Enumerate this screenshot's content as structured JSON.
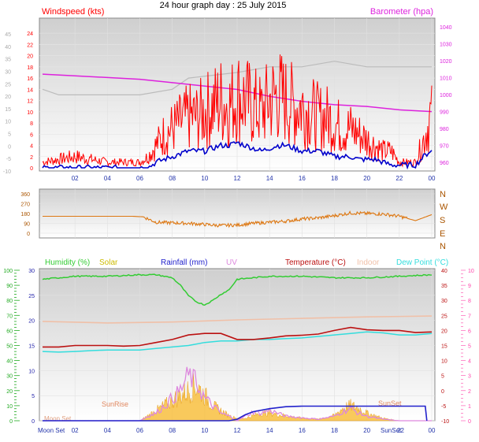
{
  "title": "24 hour graph day : 25 July 2015",
  "colors": {
    "wind": "#ff0000",
    "gust": "#0000cc",
    "baro": "#dd22dd",
    "gray": "#bbbbbb",
    "dir": "#dd7711",
    "humidity": "#33cc33",
    "solar": "#ccbb00",
    "rainfall": "#2222cc",
    "uv": "#dd88dd",
    "temperature": "#bb1111",
    "indoor": "#f0c0a8",
    "dewpoint": "#33dddd",
    "solarfill": "#f8c040",
    "green": "#22aa22",
    "pink": "#ff44aa"
  },
  "chart_data": [
    {
      "type": "line",
      "title": "24 hour graph day : 25 July 2015",
      "left_label": "Windspeed (kts)",
      "right_label": "Barometer (hpa)",
      "x_ticks": [
        "02",
        "04",
        "06",
        "08",
        "10",
        "12",
        "14",
        "16",
        "18",
        "20",
        "22",
        "00"
      ],
      "y_left_outer": [
        45,
        40,
        35,
        30,
        25,
        20,
        15,
        10,
        5,
        0,
        -5,
        -10
      ],
      "y_left_inner": [
        24,
        22,
        20,
        18,
        16,
        14,
        12,
        10,
        8,
        6,
        4,
        2,
        0
      ],
      "y_right": [
        1040,
        1030,
        1020,
        1010,
        1000,
        990,
        980,
        970,
        960
      ],
      "ylim_wind": [
        0,
        25
      ],
      "ylim_baro": [
        955,
        1045
      ],
      "series": [
        {
          "name": "Windspeed (kts)",
          "x": [
            0,
            2,
            4,
            6,
            6.5,
            7,
            7.5,
            8,
            8.5,
            9,
            9.5,
            10,
            10.5,
            11,
            11.5,
            12,
            12.5,
            13,
            13.5,
            14,
            14.5,
            15,
            15.5,
            16,
            16.5,
            17,
            17.5,
            18,
            18.5,
            19,
            19.5,
            20,
            20.5,
            21,
            21.5,
            22,
            22.5,
            23,
            23.5,
            23.9
          ],
          "values": [
            1,
            2,
            1,
            1,
            2,
            4,
            6,
            7,
            8,
            9,
            9,
            10,
            11,
            12,
            11,
            13,
            12,
            11,
            10,
            12,
            13,
            12,
            11,
            11,
            10,
            9,
            9,
            8,
            7,
            7,
            6,
            5,
            4,
            3,
            3,
            1,
            1,
            1,
            5,
            9
          ]
        },
        {
          "name": "Gust",
          "x": [
            0,
            2,
            4,
            6,
            6.5,
            7,
            7.5,
            8,
            8.5,
            9,
            9.5,
            10,
            10.5,
            11,
            11.5,
            12,
            12.5,
            13,
            13.5,
            14,
            14.5,
            15,
            15.5,
            16,
            16.5,
            17,
            17.5,
            18,
            18.5,
            19,
            19.5,
            20,
            20.5,
            21,
            21.5,
            22,
            22.5,
            23,
            23.5,
            23.9
          ],
          "values": [
            0,
            0,
            0,
            0,
            0,
            1,
            1.5,
            2,
            2.5,
            3,
            3,
            3,
            3.5,
            4,
            4,
            4.5,
            4,
            3.5,
            3,
            3.5,
            4,
            4,
            3.5,
            3,
            3,
            3,
            2.5,
            2,
            2,
            2,
            1.5,
            1.5,
            1.5,
            1,
            0.5,
            0.5,
            0.5,
            0.5,
            2,
            3
          ]
        },
        {
          "name": "Barometer (hpa)",
          "x": [
            0,
            2,
            4,
            6,
            8,
            10,
            12,
            14,
            16,
            18,
            20,
            22,
            24
          ],
          "values": [
            1012,
            1011,
            1010,
            1009,
            1007,
            1005,
            1003,
            999,
            996,
            994,
            993,
            991,
            990
          ]
        },
        {
          "name": "Gray",
          "x": [
            0,
            1,
            3,
            6,
            8,
            9,
            12,
            14,
            16,
            18,
            20,
            22,
            24
          ],
          "values": [
            14,
            13,
            13,
            13,
            14,
            16,
            17,
            18,
            18,
            19,
            18,
            18,
            18
          ]
        }
      ]
    },
    {
      "type": "line",
      "y_left": [
        360,
        270,
        180,
        90,
        0
      ],
      "y_right": [
        "N",
        "W",
        "S",
        "E",
        "N"
      ],
      "ylim": [
        0,
        360
      ],
      "series": [
        {
          "name": "Wind Direction",
          "x": [
            0,
            2,
            4,
            5.5,
            6.2,
            7,
            8,
            9,
            10,
            11,
            12,
            13,
            14,
            15,
            16,
            17,
            18,
            19,
            20,
            21,
            22,
            23,
            24
          ],
          "values": [
            155,
            155,
            155,
            155,
            150,
            100,
            95,
            90,
            80,
            70,
            75,
            90,
            100,
            110,
            130,
            140,
            160,
            185,
            180,
            175,
            155,
            115,
            170
          ]
        }
      ]
    },
    {
      "type": "line",
      "legend": [
        "Humidity (%)",
        "Solar",
        "Rainfall (mm)",
        "UV",
        "Temperature (°C)",
        "Indoor",
        "Dew Point (°C)"
      ],
      "y_outer_green": [
        100,
        90,
        80,
        70,
        60,
        50,
        40,
        30,
        20,
        10,
        0
      ],
      "y_inner_left": [
        30,
        25,
        20,
        15,
        10,
        5,
        0
      ],
      "y_right_temp": [
        40,
        35,
        30,
        25,
        20,
        15,
        10,
        5,
        0,
        -5,
        -10
      ],
      "y_far_right_uv": [
        10,
        9,
        8,
        7,
        6,
        5,
        4,
        3,
        2,
        1,
        0
      ],
      "x_ticks": [
        "02",
        "04",
        "06",
        "08",
        "10",
        "12",
        "14",
        "16",
        "18",
        "20",
        "22",
        "00"
      ],
      "x_labels": [
        "Moon Set",
        "SunSet",
        "22"
      ],
      "annotations": [
        "SunRise",
        "SunSet",
        "Moon Set"
      ],
      "series": [
        {
          "name": "Humidity (%)",
          "x": [
            0,
            2,
            4,
            6,
            7,
            8,
            8.5,
            9,
            9.5,
            10,
            10.5,
            11,
            11.5,
            12,
            14,
            16,
            18,
            20,
            22,
            24
          ],
          "values": [
            94,
            96,
            96,
            97,
            97,
            95,
            90,
            83,
            79,
            77,
            80,
            84,
            87,
            94,
            96,
            96,
            95,
            95,
            96,
            97
          ]
        },
        {
          "name": "Rainfall (mm)",
          "x": [
            0,
            11.5,
            12,
            12.5,
            13,
            14,
            15,
            16,
            18,
            20,
            22,
            23.6,
            23.7
          ],
          "values": [
            0,
            0,
            0.3,
            1.2,
            1.8,
            2.4,
            2.8,
            2.9,
            2.9,
            2.9,
            2.9,
            2.9,
            0
          ]
        },
        {
          "name": "Temperature (°C)",
          "x": [
            0,
            1,
            2,
            3,
            4,
            5,
            6,
            7,
            8,
            9,
            10,
            11,
            12,
            13,
            14,
            15,
            16,
            17,
            18,
            19,
            20,
            21,
            22,
            23,
            24
          ],
          "values": [
            14.5,
            14.5,
            15,
            15,
            15,
            14.8,
            15,
            16,
            17,
            18.5,
            19,
            19,
            17,
            17,
            17.5,
            18.2,
            18.4,
            18.8,
            20,
            21,
            20.2,
            20,
            20,
            19.3,
            19.5
          ]
        },
        {
          "name": "Indoor",
          "x": [
            0,
            4,
            8,
            12,
            16,
            20,
            24
          ],
          "values": [
            23,
            22.5,
            22.8,
            23.5,
            24,
            24.5,
            24.8
          ]
        },
        {
          "name": "Dew Point (°C)",
          "x": [
            0,
            1,
            2,
            3,
            4,
            5,
            6,
            7,
            8,
            9,
            10,
            11,
            12,
            13,
            14,
            15,
            16,
            17,
            18,
            19,
            20,
            21,
            22,
            23,
            24
          ],
          "values": [
            13,
            12.8,
            13,
            13.3,
            13.5,
            13.5,
            13.5,
            14,
            14.5,
            15,
            16,
            16.5,
            16.5,
            17,
            17,
            17.3,
            17.5,
            18,
            18.5,
            19,
            19.5,
            19.2,
            18.5,
            18.5,
            19
          ]
        },
        {
          "name": "Solar",
          "x": [
            0,
            6,
            6.5,
            7,
            7.5,
            8,
            8.5,
            9,
            9.5,
            10,
            10.5,
            11,
            11.5,
            12,
            12.5,
            13,
            13.5,
            14,
            15,
            16,
            17,
            18,
            18.5,
            19,
            19.5,
            20,
            21,
            22,
            23,
            24
          ],
          "values": [
            0,
            0,
            1,
            2,
            3,
            4,
            5,
            6,
            7,
            5,
            3,
            2,
            1,
            0.5,
            0.5,
            1,
            1.5,
            1.5,
            1,
            0.5,
            0.3,
            1,
            2.5,
            3,
            2.5,
            1.5,
            0.5,
            0,
            0,
            0
          ]
        },
        {
          "name": "UV",
          "x": [
            0,
            6,
            6.5,
            7,
            7.5,
            8,
            8.5,
            9,
            9.5,
            10,
            10.5,
            11,
            11.5,
            12,
            12.5,
            13,
            13.5,
            14,
            15,
            16,
            17,
            18,
            18.5,
            19,
            19.5,
            20,
            21,
            22,
            23,
            24
          ],
          "values": [
            0,
            0,
            0.3,
            0.5,
            1,
            1.5,
            2,
            3,
            2.5,
            1.5,
            1,
            0.5,
            0.3,
            0,
            0.3,
            0.6,
            0.5,
            0.7,
            0.3,
            0.2,
            0.1,
            0.3,
            0.6,
            0.8,
            0.5,
            0.3,
            0.1,
            0,
            0,
            0
          ]
        }
      ]
    }
  ]
}
